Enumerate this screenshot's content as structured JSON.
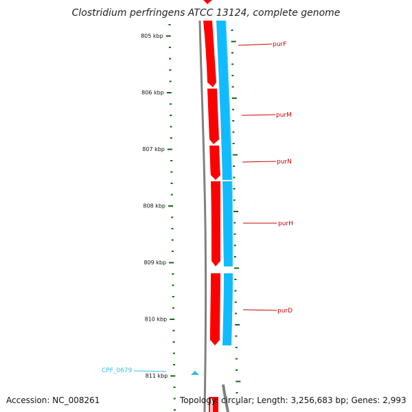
{
  "title": "Clostridium perfringens ATCC 13124, complete genome",
  "footer": {
    "accession": "Accession: NC_008261",
    "summary": "Topology: circular; Length: 3,256,683 bp; Genes: 2,993"
  },
  "colors": {
    "forward_cds": "#ff0000",
    "reverse_cds": "#11bbff",
    "backbone": "#808080",
    "ticks": "#116611",
    "label_red": "#cc0000",
    "label_blue": "#33bbee"
  },
  "scale_labels": [
    "805 kbp",
    "806 kbp",
    "807 kbp",
    "808 kbp",
    "809 kbp",
    "810 kbp",
    "811 kbp"
  ],
  "gene_labels": [
    {
      "name": "purF",
      "color": "red"
    },
    {
      "name": "purM",
      "color": "red"
    },
    {
      "name": "purN",
      "color": "red"
    },
    {
      "name": "purH",
      "color": "red"
    },
    {
      "name": "purD",
      "color": "red"
    },
    {
      "name": "CPF_0679",
      "color": "blue"
    }
  ]
}
